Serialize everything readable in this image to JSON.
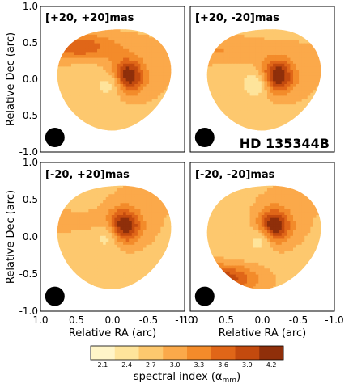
{
  "chart_data": {
    "type": "contour",
    "object_label": "HD 135344B",
    "xlabel": "Relative RA (arc)",
    "ylabel": "Relative Dec (arc)",
    "xlim": [
      1.0,
      -1.0
    ],
    "ylim": [
      -1.0,
      1.0
    ],
    "x_ticks": [
      "1.0",
      "0.5",
      "0.0",
      "-0.5",
      "-1.0"
    ],
    "y_ticks": [
      "1.0",
      "0.5",
      "0.0",
      "-0.5",
      "-1.0"
    ],
    "panels": [
      {
        "title": "[+20, +20]mas",
        "peak": [
          -0.2,
          0.05
        ],
        "void": [
          0.0,
          -0.05
        ],
        "ridge": [
          0.45,
          0.45
        ],
        "ridge_strength": 0.75,
        "beam": [
          0.8,
          -0.8
        ]
      },
      {
        "title": "[+20, -20]mas",
        "peak": [
          -0.2,
          0.05
        ],
        "void": [
          0.05,
          -0.05
        ],
        "ridge": [
          0.5,
          0.4
        ],
        "ridge_strength": 0.35,
        "beam": [
          0.8,
          -0.8
        ]
      },
      {
        "title": "[-20, +20]mas",
        "peak": [
          -0.15,
          0.15
        ],
        "void": [
          0.05,
          0.05
        ],
        "ridge": [
          0.55,
          0.2
        ],
        "ridge_strength": 0.2,
        "beam": [
          0.8,
          -0.8
        ]
      },
      {
        "title": "[-20, -20]mas",
        "peak": [
          -0.15,
          0.15
        ],
        "void": [
          0.0,
          0.0
        ],
        "ridge": [
          0.55,
          -0.55
        ],
        "ridge_strength": 0.95,
        "beam": [
          0.8,
          -0.8
        ]
      }
    ],
    "colorbar": {
      "label": "spectral index (α",
      "label_sub": "mm",
      "label_end": ")",
      "ticks": [
        "2.1",
        "2.4",
        "2.7",
        "3.0",
        "3.3",
        "3.6",
        "3.9",
        "4.2"
      ],
      "levels": [
        2.1,
        2.4,
        2.7,
        3.0,
        3.3,
        3.6,
        3.9,
        4.2
      ],
      "colors": [
        "#fff5c8",
        "#fee49b",
        "#fdc86e",
        "#fba94a",
        "#f38b2a",
        "#e06618",
        "#c34a0e",
        "#8f2f0a"
      ]
    }
  }
}
